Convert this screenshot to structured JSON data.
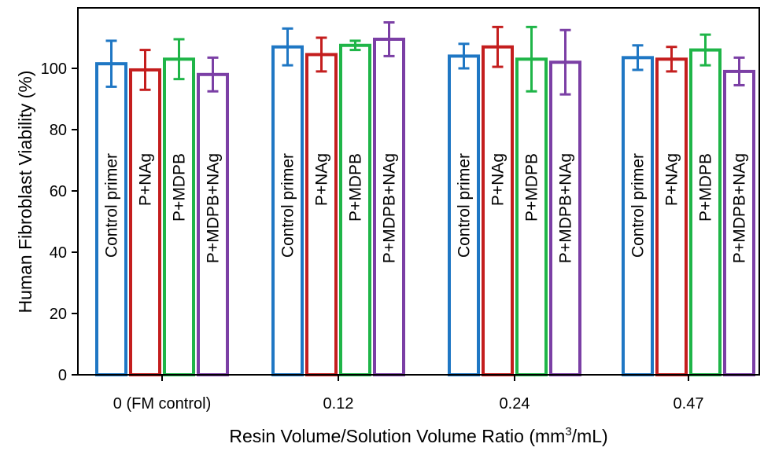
{
  "chart_data": {
    "type": "bar",
    "ylabel": "Human Fibroblast Viability (%)",
    "xlabel_main": "Resin Volume/Solution Volume Ratio (mm",
    "xlabel_sup": "3",
    "xlabel_tail": "/mL)",
    "ylim": [
      0,
      120
    ],
    "yticks": [
      "0",
      "20",
      "40",
      "60",
      "80",
      "100"
    ],
    "categories": [
      "0 (FM control)",
      "0.12",
      "0.24",
      "0.47"
    ],
    "series": [
      {
        "name": "Control primer",
        "color": "#1f77c4",
        "values": [
          101.5,
          107,
          104,
          103.5
        ],
        "errors": [
          7.5,
          6,
          4,
          4
        ]
      },
      {
        "name": "P+NAg",
        "color": "#c41e1e",
        "values": [
          99.5,
          104.5,
          107,
          103
        ],
        "errors": [
          6.5,
          5.5,
          6.5,
          4
        ]
      },
      {
        "name": "P+MDPB",
        "color": "#1fb548",
        "values": [
          103,
          107.5,
          103,
          106
        ],
        "errors": [
          6.5,
          1.5,
          10.5,
          5
        ]
      },
      {
        "name": "P+MDPB+NAg",
        "color": "#7b3fa5",
        "values": [
          98,
          109.5,
          102,
          99
        ],
        "errors": [
          5.5,
          5.5,
          10.5,
          4.5
        ]
      }
    ],
    "grid": false,
    "legend": "none"
  }
}
